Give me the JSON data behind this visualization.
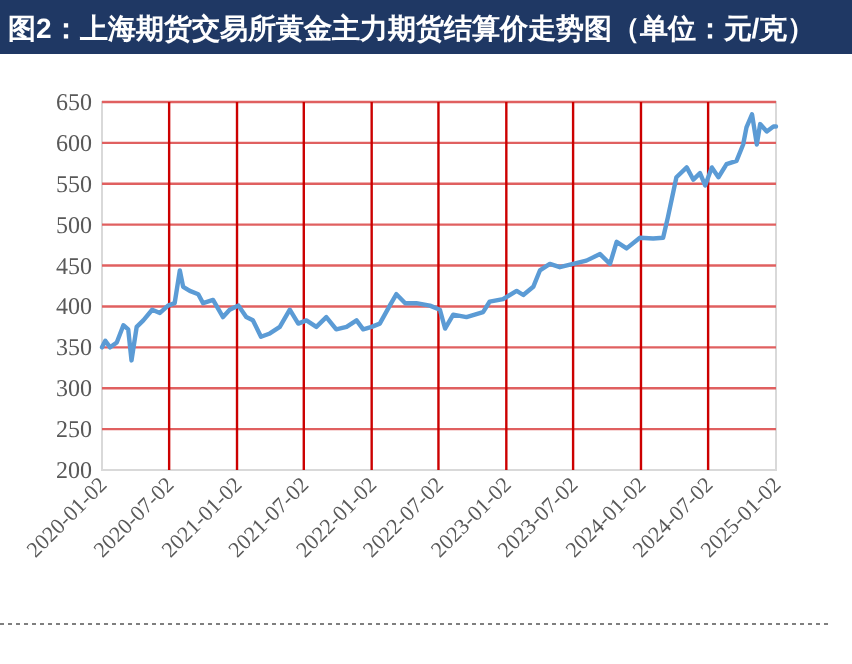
{
  "chart_data": {
    "type": "line",
    "title": "图2：上海期货交易所黄金主力期货结算价走势图（单位：元/克）",
    "x": [
      "2020-01-02",
      "2020-01-11",
      "2020-01-24",
      "2020-02-11",
      "2020-02-29",
      "2020-03-13",
      "2020-03-22",
      "2020-04-05",
      "2020-04-23",
      "2020-05-17",
      "2020-06-07",
      "2020-06-29",
      "2020-07-17",
      "2020-07-31",
      "2020-08-09",
      "2020-08-27",
      "2020-09-19",
      "2020-10-02",
      "2020-10-29",
      "2020-11-25",
      "2020-12-13",
      "2021-01-06",
      "2021-01-27",
      "2021-02-14",
      "2021-03-08",
      "2021-04-01",
      "2021-04-28",
      "2021-05-25",
      "2021-06-17",
      "2021-07-09",
      "2021-08-05",
      "2021-09-01",
      "2021-09-28",
      "2021-10-26",
      "2021-11-22",
      "2021-12-10",
      "2022-01-02",
      "2022-01-24",
      "2022-02-20",
      "2022-03-10",
      "2022-04-03",
      "2022-05-03",
      "2022-06-09",
      "2022-07-06",
      "2022-07-20",
      "2022-08-11",
      "2022-09-16",
      "2022-10-31",
      "2022-11-18",
      "2022-12-24",
      "2023-01-30",
      "2023-02-17",
      "2023-03-16",
      "2023-04-03",
      "2023-04-30",
      "2023-05-27",
      "2023-07-02",
      "2023-08-07",
      "2023-09-13",
      "2023-10-10",
      "2023-10-28",
      "2023-11-24",
      "2023-12-30",
      "2024-02-04",
      "2024-03-02",
      "2024-03-15",
      "2024-04-07",
      "2024-05-05",
      "2024-05-23",
      "2024-06-10",
      "2024-06-24",
      "2024-07-12",
      "2024-07-30",
      "2024-08-21",
      "2024-09-17",
      "2024-10-05",
      "2024-10-14",
      "2024-10-29",
      "2024-11-11",
      "2024-11-20",
      "2024-12-08",
      "2024-12-26",
      "2025-01-02"
    ],
    "series": [
      {
        "color": "#5b9bd5",
        "values": [
          350,
          358,
          350,
          356,
          377,
          372,
          334,
          375,
          383,
          396,
          392,
          401,
          404,
          444,
          424,
          419,
          415,
          404,
          408,
          387,
          396,
          401,
          387,
          383,
          363,
          367,
          375,
          396,
          379,
          383,
          375,
          387,
          372,
          375,
          383,
          372,
          375,
          379,
          401,
          415,
          404,
          404,
          401,
          396,
          373,
          390,
          387,
          393,
          406,
          409,
          419,
          414,
          424,
          444,
          452,
          448,
          452,
          456,
          464,
          452,
          479,
          471,
          484,
          483,
          484,
          509,
          558,
          570,
          555,
          563,
          548,
          570,
          558,
          574,
          578,
          598,
          619,
          635,
          598,
          623,
          614,
          620,
          620
        ]
      }
    ],
    "xlim": [
      "2020-01-02",
      "2025-01-02"
    ],
    "xticks": [
      "2020-01-02",
      "2020-07-02",
      "2021-01-02",
      "2021-07-02",
      "2022-01-02",
      "2022-07-02",
      "2023-01-02",
      "2023-07-02",
      "2024-01-02",
      "2024-07-02",
      "2025-01-02"
    ],
    "ylim": [
      200,
      650
    ],
    "yticks": [
      200,
      250,
      300,
      350,
      400,
      450,
      500,
      550,
      600,
      650
    ],
    "grid": true,
    "marker": "none",
    "line_style": "solid"
  }
}
